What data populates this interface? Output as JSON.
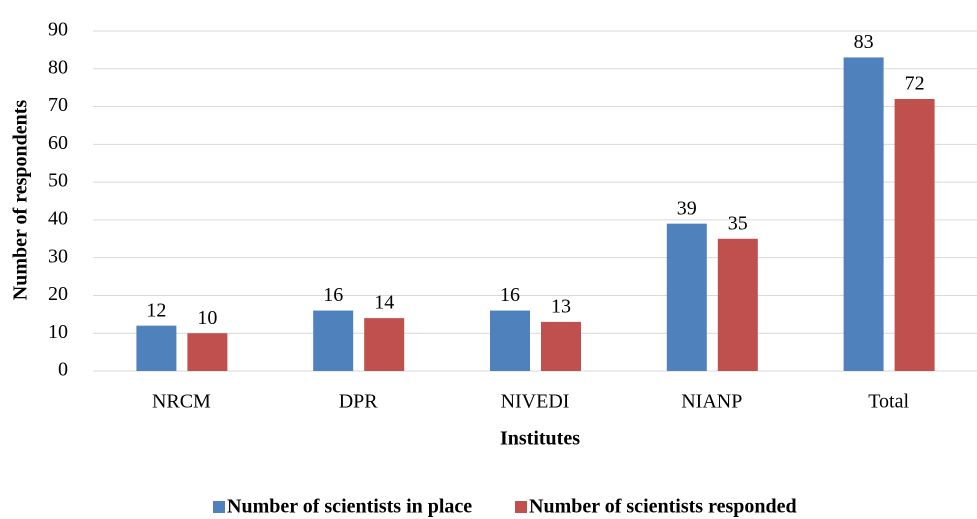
{
  "chart_data": {
    "type": "bar",
    "x_label": "Institutes",
    "y_label": "Number of respondents",
    "categories": [
      "NRCM",
      "DPR",
      "NIVEDI",
      "NIANP",
      "Total"
    ],
    "series": [
      {
        "name": "Number of scientists in place",
        "color": "#4f81bd",
        "values": [
          12,
          16,
          16,
          39,
          83
        ]
      },
      {
        "name": "Number of scientists responded",
        "color": "#c0504d",
        "values": [
          10,
          14,
          13,
          35,
          72
        ]
      }
    ],
    "ylim": [
      0,
      90
    ],
    "yticks": [
      0,
      10,
      20,
      30,
      40,
      50,
      60,
      70,
      80,
      90
    ],
    "grid": true,
    "legend": "bottom"
  }
}
